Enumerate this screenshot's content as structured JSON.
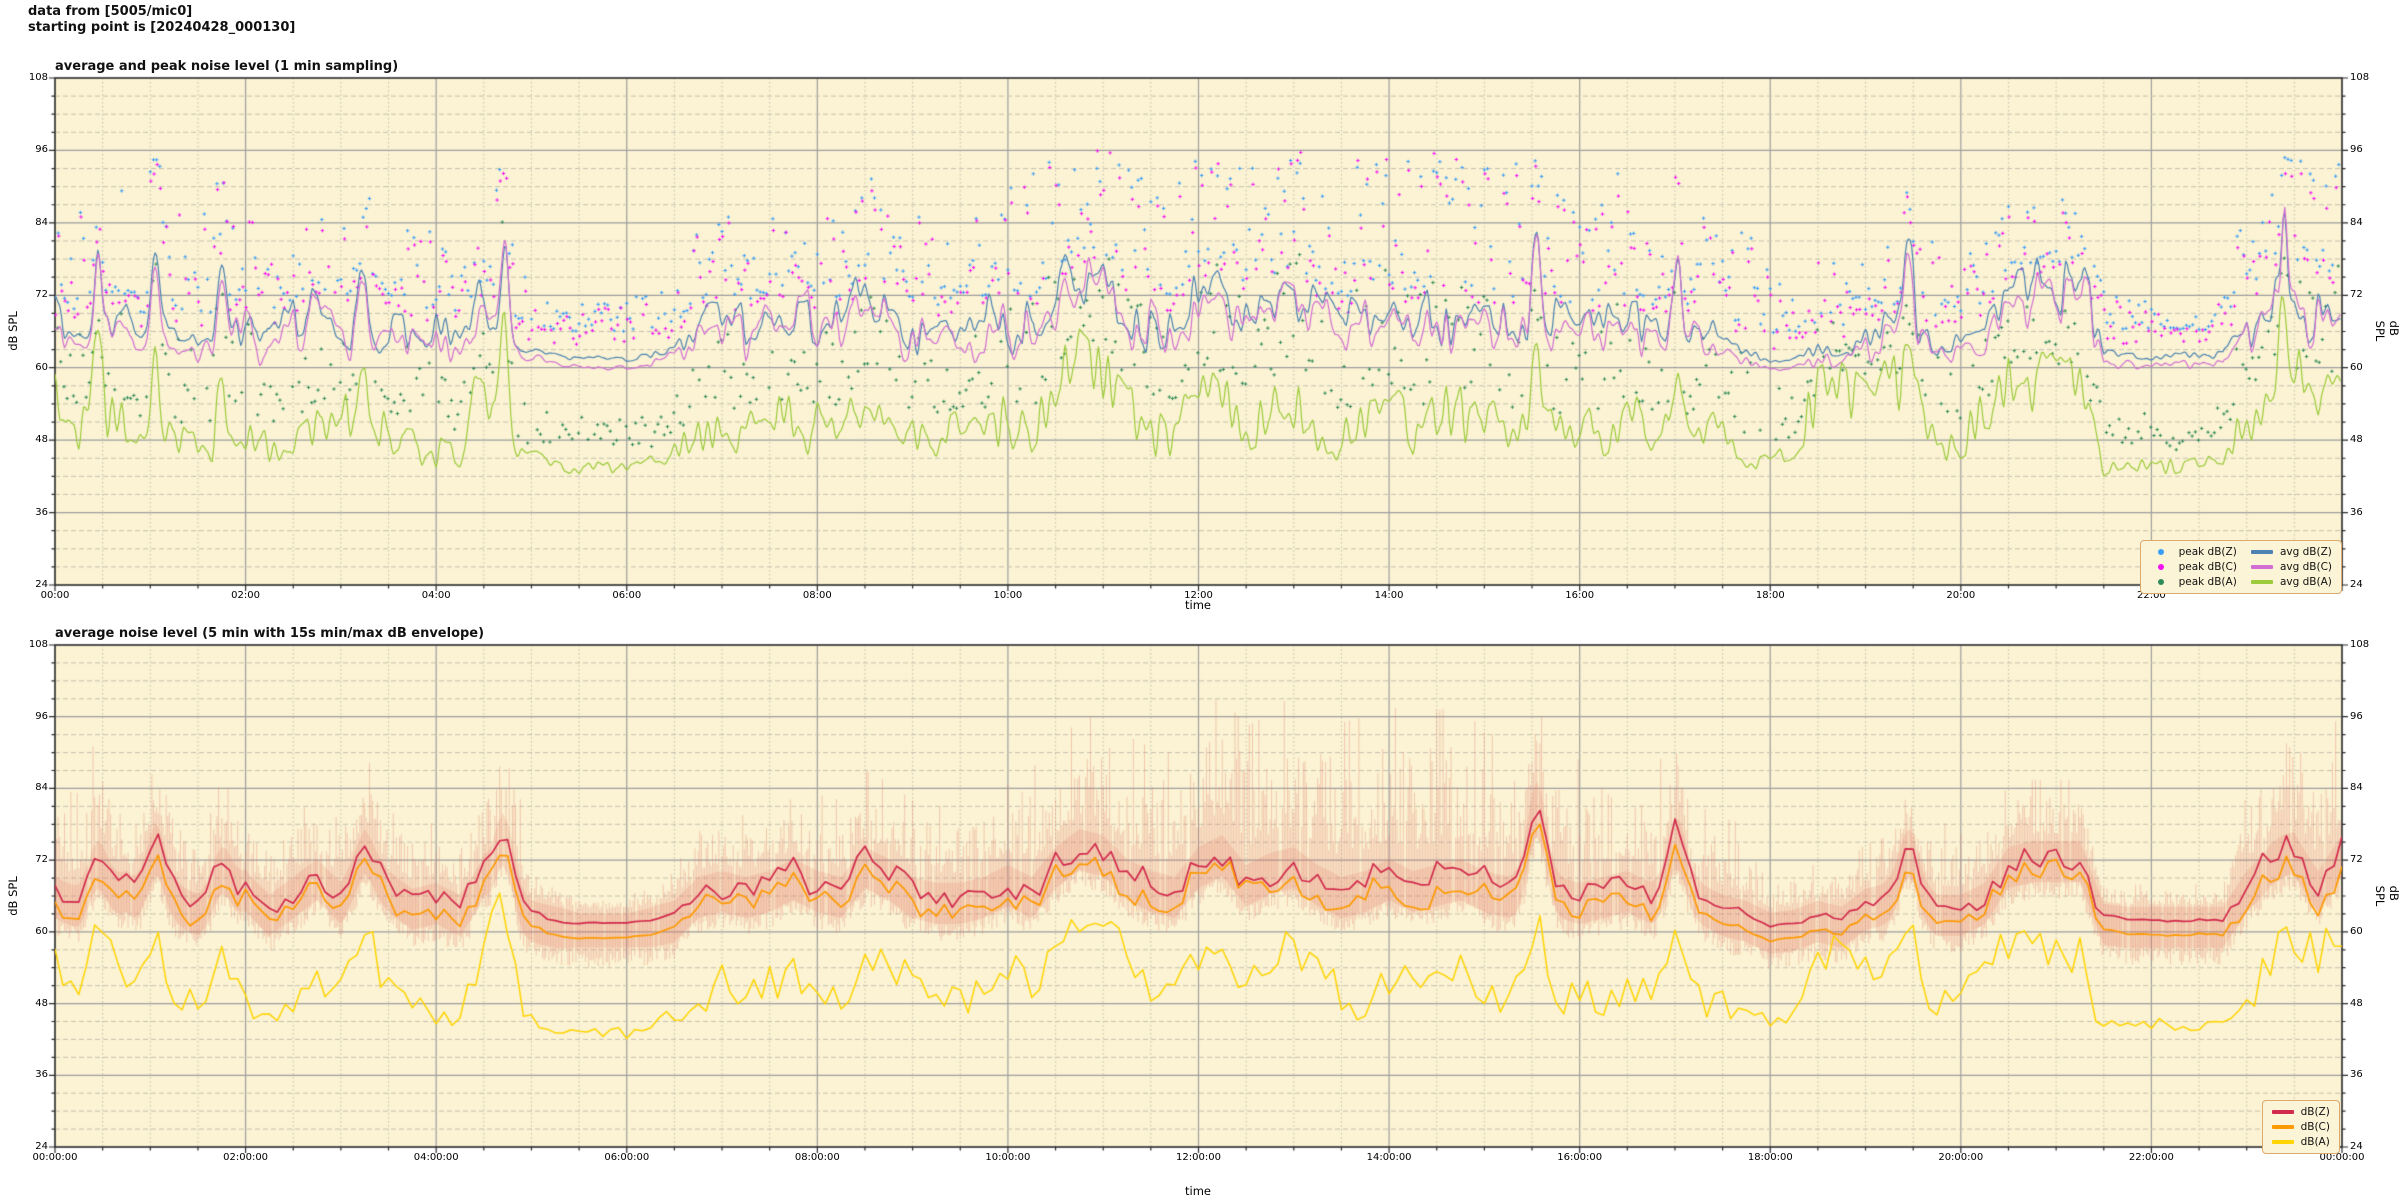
{
  "header": {
    "line1": "data from [5005/mic0]",
    "line2": "starting point is [20240428_000130]"
  },
  "style": {
    "page_bg": "#ffffff",
    "plot_bg": "#FBF3D3",
    "grid_major": "#9e9e9e",
    "grid_minor": "#c6c1b0",
    "spine": "#2a2a2a",
    "text": "#000000",
    "legend_bg": "#FCF4D6",
    "legend_border": "#dca96e",
    "envelope": "rgba(225,112,100,0.33)",
    "envelope_core": "rgba(228,130,112,0.20)"
  },
  "chart_data": [
    {
      "type": "line+scatter",
      "title": "average and peak noise level (1 min sampling)",
      "xlabel": "time",
      "ylabel_left": "dB SPL",
      "ylabel_right": "dB SPL",
      "ylim": [
        24,
        108
      ],
      "ytick_values": [
        24,
        36,
        48,
        60,
        72,
        84,
        96,
        108
      ],
      "ytick_labels": [
        "24",
        "36",
        "48",
        "60",
        "72",
        "84",
        "96",
        "108"
      ],
      "y_minor_step": 3,
      "x_range_hours": [
        0,
        24
      ],
      "xtick_hours": [
        0,
        2,
        4,
        6,
        8,
        10,
        12,
        14,
        16,
        18,
        20,
        22
      ],
      "xtick_labels": [
        "00:00",
        "02:00",
        "04:00",
        "06:00",
        "08:00",
        "10:00",
        "12:00",
        "14:00",
        "16:00",
        "18:00",
        "20:00",
        "22:00"
      ],
      "x_minor_step_hours": 0.5,
      "sample_step_hours": 0.25,
      "legend": {
        "position": "lower right",
        "columns": 2,
        "entries": [
          {
            "label": "peak dB(Z)",
            "marker": "dot",
            "color": "#3A9DF8"
          },
          {
            "label": "avg dB(Z)",
            "marker": "line",
            "color": "#4C83B2"
          },
          {
            "label": "peak dB(C)",
            "marker": "dot",
            "color": "#F511F5"
          },
          {
            "label": "avg dB(C)",
            "marker": "line",
            "color": "#D36FD3"
          },
          {
            "label": "peak dB(A)",
            "marker": "dot",
            "color": "#2F8B58"
          },
          {
            "label": "avg dB(A)",
            "marker": "line",
            "color": "#9CCB3B"
          }
        ]
      },
      "series": [
        {
          "name": "avg dB(Z)",
          "kind": "line",
          "color": "#4C83B2",
          "values_dB": [
            67,
            65,
            66,
            68,
            63,
            66,
            64,
            65,
            68,
            64,
            67,
            70,
            66,
            72,
            68,
            65,
            66,
            64,
            70,
            64,
            63,
            62,
            61.5,
            61.5,
            61.5,
            62,
            63,
            67,
            68,
            67,
            68,
            70,
            68,
            67,
            72,
            70,
            67,
            66,
            66,
            67,
            69,
            67,
            72,
            75,
            74,
            70,
            68,
            67,
            72,
            74,
            69,
            71,
            72,
            69,
            67,
            68,
            70,
            68,
            69,
            70,
            68,
            67,
            67,
            67,
            66,
            67,
            68,
            66,
            66,
            66,
            64,
            63,
            61,
            61.5,
            63,
            62,
            65,
            66,
            67,
            64,
            64,
            66,
            72,
            73,
            73,
            73,
            62.5,
            62,
            62,
            62,
            62,
            62,
            68,
            72,
            74,
            68,
            74
          ]
        },
        {
          "name": "avg dB(C)",
          "kind": "line",
          "color": "#D36FD3",
          "values_dB": [
            65.5,
            63.5,
            64.5,
            66.5,
            61.5,
            64.5,
            62.5,
            63.5,
            66.5,
            62.5,
            65.5,
            68.5,
            64.5,
            70.5,
            66.5,
            63.5,
            64.5,
            62.5,
            68.5,
            62.5,
            61.5,
            60.5,
            60,
            60,
            60,
            60.5,
            61.5,
            65.5,
            66.5,
            65.5,
            66.5,
            68.5,
            66.5,
            65.5,
            70.5,
            68.5,
            65.5,
            64.5,
            64.5,
            65.5,
            67.5,
            65.5,
            70.5,
            73.5,
            72.5,
            68.5,
            66.5,
            65.5,
            70.5,
            72.5,
            67.5,
            69.5,
            70.5,
            67.5,
            65.5,
            66.5,
            68.5,
            66.5,
            67.5,
            68.5,
            66.5,
            65.5,
            65.5,
            65.5,
            64.5,
            65.5,
            66.5,
            64.5,
            64.5,
            64.5,
            62.5,
            61.5,
            59.5,
            60,
            61.5,
            60.5,
            63.5,
            64.5,
            65.5,
            62.5,
            62.5,
            64.5,
            70.5,
            71.5,
            71.5,
            71.5,
            61,
            60.5,
            60.5,
            60.5,
            60.5,
            60.5,
            66.5,
            70.5,
            72.5,
            66.5,
            72.5
          ]
        },
        {
          "name": "avg dB(A)",
          "kind": "line",
          "color": "#9CCB3B",
          "values_dB": [
            55,
            50,
            52,
            52,
            46,
            48,
            47,
            50,
            50,
            46,
            48,
            52,
            50,
            55,
            50,
            48,
            47,
            46,
            58,
            47,
            45,
            44,
            43.5,
            43.5,
            43.5,
            44,
            46,
            50,
            52,
            50,
            50,
            53,
            51,
            50,
            56,
            54,
            50,
            48,
            49,
            50,
            53,
            50,
            57,
            62,
            60,
            54,
            51,
            50,
            57,
            56,
            52,
            55,
            57,
            52,
            50,
            51,
            54,
            51,
            52,
            54,
            51,
            49,
            50,
            49,
            48,
            50,
            52,
            49,
            50,
            49,
            48,
            46,
            44,
            46,
            54,
            55,
            55,
            56,
            56,
            48,
            48,
            52,
            57,
            58,
            58,
            58,
            44,
            43.5,
            44,
            44,
            44.5,
            44.5,
            52,
            55,
            57,
            54,
            58
          ]
        },
        {
          "name": "peak dB(Z)",
          "kind": "scatter",
          "color": "#3A9DF8",
          "offset_above": "avg dB(Z)"
        },
        {
          "name": "peak dB(C)",
          "kind": "scatter",
          "color": "#F511F5",
          "offset_above": "avg dB(C)"
        },
        {
          "name": "peak dB(A)",
          "kind": "scatter",
          "color": "#2F8B58",
          "offset_above": "avg dB(A)"
        }
      ],
      "peak_spread_dB": [
        14,
        14,
        16,
        14,
        14,
        14,
        14,
        16,
        14,
        12,
        12,
        12,
        12,
        12,
        12,
        12,
        12,
        12,
        12,
        16,
        5,
        4,
        4,
        4,
        4,
        5,
        8,
        10,
        10,
        10,
        10,
        10,
        12,
        12,
        12,
        12,
        12,
        12,
        12,
        12,
        16,
        16,
        16,
        16,
        18,
        18,
        18,
        18,
        20,
        20,
        20,
        20,
        22,
        22,
        22,
        22,
        22,
        22,
        22,
        22,
        20,
        20,
        16,
        18,
        18,
        18,
        18,
        18,
        14,
        12,
        12,
        12,
        8,
        8,
        8,
        8,
        8,
        8,
        8,
        12,
        10,
        10,
        10,
        10,
        10,
        10,
        5,
        4,
        4,
        4,
        4,
        6,
        14,
        18,
        18,
        18,
        18
      ],
      "spikes": [
        {
          "t_hours": 0.45,
          "z": 80,
          "a": 64
        },
        {
          "t_hours": 1.05,
          "z": 79,
          "a": 62
        },
        {
          "t_hours": 1.75,
          "z": 76,
          "a": 60
        },
        {
          "t_hours": 3.25,
          "z": 76,
          "a": 60
        },
        {
          "t_hours": 4.72,
          "z": 83,
          "a": 66
        },
        {
          "t_hours": 15.55,
          "z": 84,
          "a": 64
        },
        {
          "t_hours": 17.02,
          "z": 79,
          "a": 60
        },
        {
          "t_hours": 19.45,
          "z": 83,
          "a": 65
        },
        {
          "t_hours": 23.38,
          "z": 84,
          "a": 70
        }
      ],
      "spike_sigma_min": 3.5
    },
    {
      "type": "line+envelope",
      "title": "average noise level (5 min with 15s min/max dB envelope)",
      "xlabel": "time",
      "ylabel_left": "dB SPL",
      "ylabel_right": "dB SPL",
      "ylim": [
        24,
        108
      ],
      "ytick_values": [
        24,
        36,
        48,
        60,
        72,
        84,
        96,
        108
      ],
      "ytick_labels": [
        "24",
        "36",
        "48",
        "60",
        "72",
        "84",
        "96",
        "108"
      ],
      "y_minor_step": 3,
      "x_range_hours": [
        0,
        24
      ],
      "xtick_hours": [
        0,
        2,
        4,
        6,
        8,
        10,
        12,
        14,
        16,
        18,
        20,
        22,
        24
      ],
      "xtick_labels": [
        "00:00:00",
        "02:00:00",
        "04:00:00",
        "06:00:00",
        "08:00:00",
        "10:00:00",
        "12:00:00",
        "14:00:00",
        "16:00:00",
        "18:00:00",
        "20:00:00",
        "22:00:00",
        "00:00:00"
      ],
      "x_minor_step_hours": 0.5,
      "sample_step_hours": 0.25,
      "legend": {
        "position": "lower right",
        "columns": 1,
        "entries": [
          {
            "label": "dB(Z)",
            "marker": "line",
            "color": "#D22A4C"
          },
          {
            "label": "dB(C)",
            "marker": "line",
            "color": "#FD9A02"
          },
          {
            "label": "dB(A)",
            "marker": "line",
            "color": "#FFD402"
          }
        ]
      },
      "series": [
        {
          "name": "dB(Z)",
          "kind": "line",
          "color": "#D22A4C",
          "values_dB": [
            67,
            65,
            66,
            68,
            63,
            66,
            64,
            65,
            68,
            64,
            67,
            70,
            66,
            72,
            68,
            65,
            66,
            64,
            70,
            64,
            63,
            62,
            61.5,
            61.5,
            61.5,
            62,
            63,
            67,
            68,
            67,
            68,
            70,
            68,
            67,
            72,
            70,
            67,
            66,
            66,
            67,
            69,
            67,
            72,
            75,
            74,
            70,
            68,
            67,
            72,
            74,
            69,
            71,
            72,
            69,
            67,
            68,
            70,
            68,
            69,
            70,
            68,
            67,
            67,
            67,
            66,
            67,
            68,
            66,
            66,
            66,
            64,
            63,
            61,
            61.5,
            63,
            62,
            65,
            66,
            67,
            64,
            64,
            66,
            72,
            73,
            73,
            73,
            62.5,
            62,
            62,
            62,
            62,
            62,
            68,
            72,
            74,
            68,
            74
          ]
        },
        {
          "name": "dB(C)",
          "kind": "line",
          "color": "#FD9A02",
          "values_dB": [
            64.5,
            62.5,
            63.5,
            65.5,
            60.5,
            63.5,
            61.5,
            62.5,
            65.5,
            61.5,
            64.5,
            67.5,
            63.5,
            69.5,
            65.5,
            62.5,
            63.5,
            61.5,
            67.5,
            61.5,
            60.5,
            59.5,
            59,
            59,
            59,
            59.5,
            60.5,
            64.5,
            65.5,
            64.5,
            65.5,
            67.5,
            65.5,
            64.5,
            69.5,
            67.5,
            64.5,
            63.5,
            63.5,
            64.5,
            66.5,
            64.5,
            69.5,
            72.5,
            71.5,
            67.5,
            65.5,
            64.5,
            69.5,
            71.5,
            66.5,
            68.5,
            69.5,
            66.5,
            64.5,
            65.5,
            67.5,
            65.5,
            66.5,
            67.5,
            65.5,
            64.5,
            64.5,
            64.5,
            63.5,
            64.5,
            65.5,
            63.5,
            63.5,
            63.5,
            61.5,
            60.5,
            58.5,
            59,
            60.5,
            59.5,
            62.5,
            63.5,
            64.5,
            61.5,
            61.5,
            63.5,
            69.5,
            70.5,
            70.5,
            70.5,
            60,
            59.5,
            59.5,
            59.5,
            59.5,
            59.5,
            65.5,
            69.5,
            71.5,
            65.5,
            71.5
          ]
        },
        {
          "name": "dB(A)",
          "kind": "line",
          "color": "#FFD402",
          "values_dB": [
            55,
            50,
            52,
            52,
            46,
            48,
            47,
            50,
            50,
            46,
            48,
            52,
            50,
            55,
            50,
            48,
            47,
            46,
            58,
            47,
            45,
            44,
            43.5,
            43.5,
            43.5,
            44,
            46,
            50,
            52,
            50,
            50,
            53,
            51,
            50,
            56,
            54,
            50,
            48,
            49,
            50,
            53,
            50,
            57,
            62,
            60,
            54,
            51,
            50,
            57,
            56,
            52,
            55,
            57,
            52,
            50,
            51,
            54,
            51,
            52,
            54,
            51,
            49,
            50,
            49,
            48,
            50,
            52,
            49,
            50,
            49,
            48,
            46,
            44,
            46,
            54,
            55,
            55,
            56,
            56,
            48,
            48,
            52,
            57,
            58,
            58,
            58,
            44,
            43.5,
            44,
            44,
            44.5,
            44.5,
            52,
            55,
            57,
            54,
            58
          ]
        }
      ],
      "envelope": {
        "applies_to": "dB(Z)",
        "up_dB": [
          12,
          12,
          14,
          10,
          12,
          10,
          8,
          12,
          8,
          8,
          8,
          8,
          8,
          10,
          8,
          8,
          8,
          8,
          10,
          16,
          6,
          3,
          2,
          2,
          2,
          2.5,
          6,
          8,
          8,
          8,
          8,
          8,
          10,
          10,
          10,
          10,
          10,
          10,
          10,
          10,
          14,
          14,
          14,
          14,
          16,
          16,
          16,
          16,
          18,
          18,
          18,
          18,
          20,
          20,
          20,
          20,
          20,
          20,
          20,
          20,
          18,
          18,
          14,
          16,
          16,
          16,
          16,
          16,
          12,
          10,
          10,
          10,
          5,
          5,
          5,
          5,
          6,
          6,
          6,
          10,
          8,
          8,
          8,
          8,
          8,
          8,
          3,
          3,
          3,
          3,
          3,
          4,
          10,
          14,
          16,
          16,
          16
        ],
        "down_dB": 3
      },
      "spikes": [
        {
          "t_hours": 0.45,
          "z": 73,
          "a": 57
        },
        {
          "t_hours": 1.05,
          "z": 76,
          "a": 59
        },
        {
          "t_hours": 1.75,
          "z": 72,
          "a": 55
        },
        {
          "t_hours": 3.25,
          "z": 75,
          "a": 60
        },
        {
          "t_hours": 4.72,
          "z": 77.5,
          "a": 62
        },
        {
          "t_hours": 15.55,
          "z": 83,
          "a": 62
        },
        {
          "t_hours": 17.02,
          "z": 77,
          "a": 57
        },
        {
          "t_hours": 19.45,
          "z": 75,
          "a": 60
        },
        {
          "t_hours": 23.38,
          "z": 74,
          "a": 60
        }
      ],
      "spike_sigma_min": 8
    }
  ]
}
